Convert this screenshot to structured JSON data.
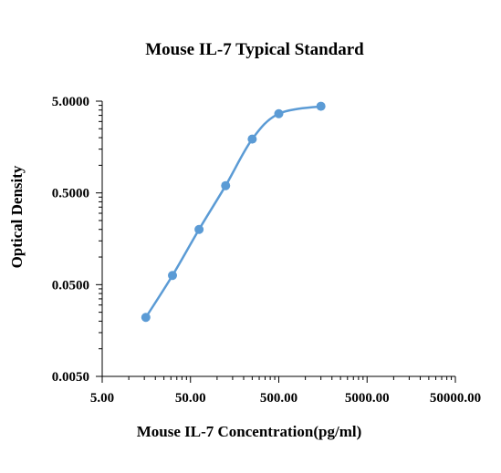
{
  "chart_data": {
    "type": "scatter",
    "title": "Mouse IL-7 Typical Standard",
    "xlabel": "Mouse IL-7 Concentration(pg/ml)",
    "ylabel": "Optical Density",
    "xscale": "log",
    "yscale": "log",
    "xlim": [
      5,
      50000
    ],
    "ylim": [
      0.005,
      5
    ],
    "x_ticks": [
      5,
      50,
      500,
      5000,
      50000
    ],
    "x_tick_labels": [
      "5.00",
      "50.00",
      "500.00",
      "5000.00",
      "50000.00"
    ],
    "y_ticks": [
      0.005,
      0.05,
      0.5,
      5
    ],
    "y_tick_labels": [
      "0.0050",
      "0.0500",
      "0.5000",
      "5.0000"
    ],
    "grid": false,
    "legend": "none",
    "series": [
      {
        "color": "#5b9bd5",
        "line": "smooth",
        "x": [
          15.6,
          31.25,
          62.5,
          125,
          250,
          500,
          1500
        ],
        "y": [
          0.022,
          0.063,
          0.2,
          0.6,
          1.93,
          3.65,
          4.4
        ]
      }
    ]
  }
}
